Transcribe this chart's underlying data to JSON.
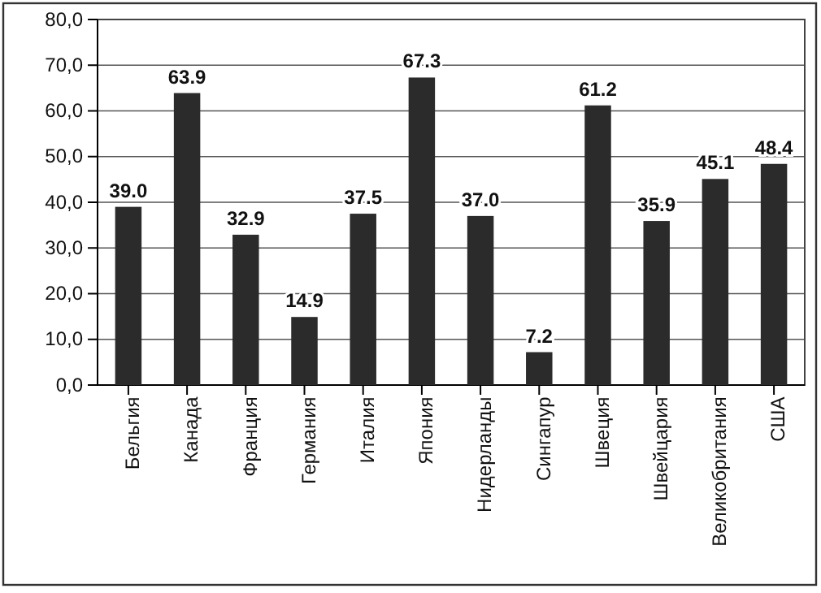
{
  "chart_data": {
    "type": "bar",
    "categories": [
      "Бельгия",
      "Канада",
      "Франция",
      "Германия",
      "Италия",
      "Япония",
      "Нидерланды",
      "Сингапур",
      "Швеция",
      "Швейцария",
      "Великобритания",
      "США"
    ],
    "values": [
      39.0,
      63.9,
      32.9,
      14.9,
      37.5,
      67.3,
      37.0,
      7.2,
      61.2,
      35.9,
      45.1,
      48.4
    ],
    "value_labels": [
      "39.0",
      "63.9",
      "32.9",
      "14.9",
      "37.5",
      "67.3",
      "37.0",
      "7.2",
      "61.2",
      "35.9",
      "45.1",
      "48.4"
    ],
    "color": "#2b2b2b",
    "ylim": [
      0,
      80
    ],
    "yticks": [
      {
        "value": 0,
        "label": "0,0"
      },
      {
        "value": 10,
        "label": "10,0"
      },
      {
        "value": 20,
        "label": "20,0"
      },
      {
        "value": 30,
        "label": "30,0"
      },
      {
        "value": 40,
        "label": "40,0"
      },
      {
        "value": 50,
        "label": "50,0"
      },
      {
        "value": 60,
        "label": "60,0"
      },
      {
        "value": 70,
        "label": "70,0"
      },
      {
        "value": 80,
        "label": "80,0"
      }
    ],
    "grid": "y"
  }
}
